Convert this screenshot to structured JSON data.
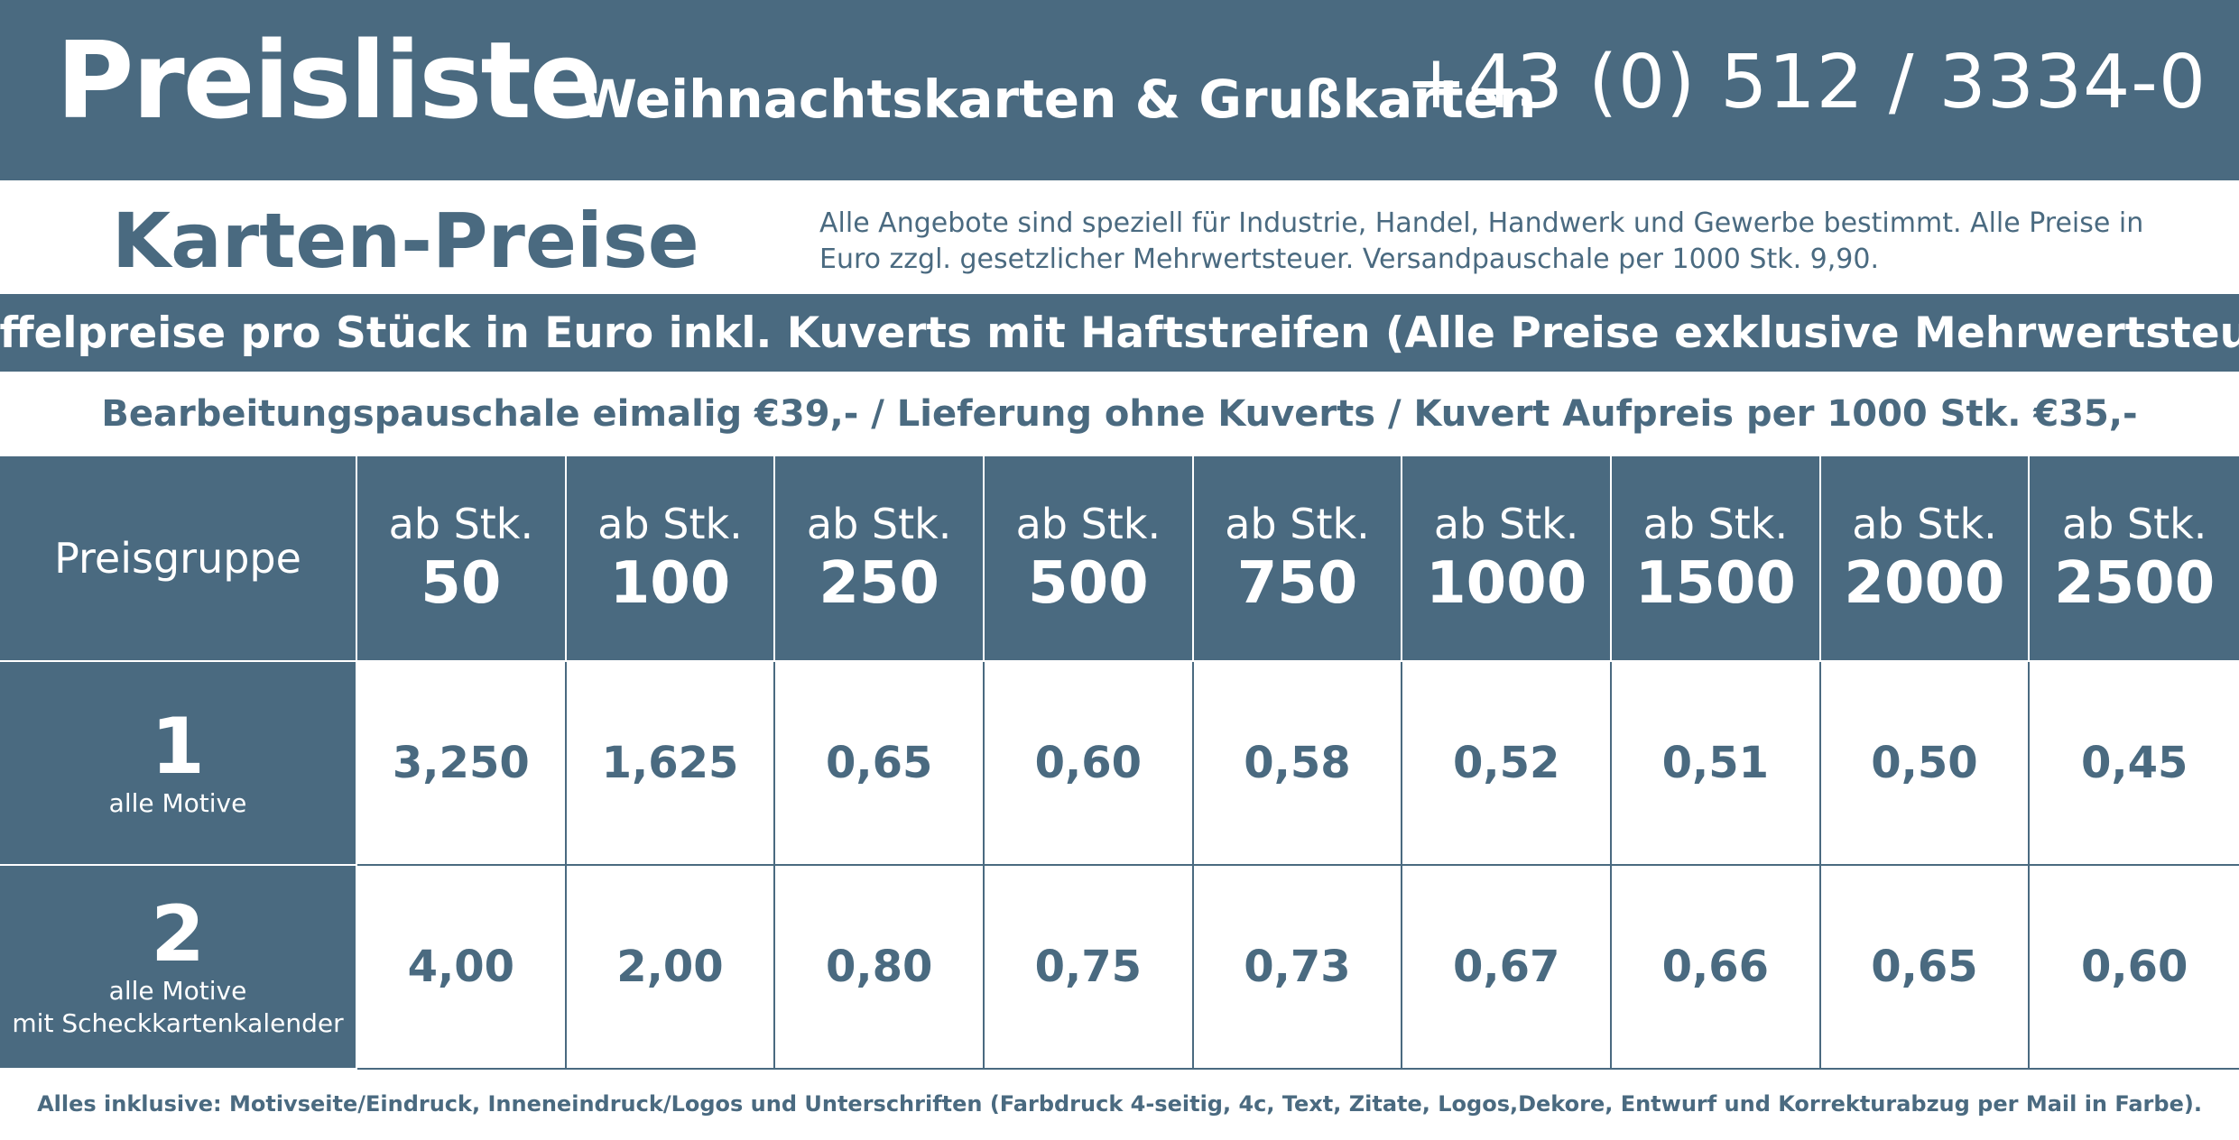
{
  "header": {
    "title": "Preisliste",
    "subtitle": "Weihnachtskarten & Grußkarten",
    "phone": "+43 (0) 512 / 3334-0"
  },
  "karten": {
    "title": "Karten-Preise",
    "note": "Alle Angebote sind speziell für Industrie, Handel, Handwerk und Gewerbe bestimmt. Alle Preise in Euro zzgl. gesetzlicher Mehrwertsteuer. Versandpauschale per 1000 Stk. 9,90."
  },
  "staffel": {
    "text": "Staffelpreise pro Stück in Euro inkl. Kuverts mit Haftstreifen (Alle Preise exklusive Mehrwertsteuer)"
  },
  "bearbeitung": {
    "text": "Bearbeitungspauschale eimalig €39,- / Lieferung ohne Kuverts / Kuvert Aufpreis per 1000 Stk. €35,-"
  },
  "table": {
    "group_header": "Preisgruppe",
    "qty_label": "ab Stk.",
    "quantities": [
      "50",
      "100",
      "250",
      "500",
      "750",
      "1000",
      "1500",
      "2000",
      "2500"
    ],
    "rows": [
      {
        "group": "1",
        "desc_line1": "alle Motive",
        "desc_line2": "",
        "prices": [
          "3,250",
          "1,625",
          "0,65",
          "0,60",
          "0,58",
          "0,52",
          "0,51",
          "0,50",
          "0,45"
        ]
      },
      {
        "group": "2",
        "desc_line1": "alle Motive",
        "desc_line2": "mit Scheckkartenkalender",
        "prices": [
          "4,00",
          "2,00",
          "0,80",
          "0,75",
          "0,73",
          "0,67",
          "0,66",
          "0,65",
          "0,60"
        ]
      }
    ]
  },
  "footer": {
    "text": "Alles inklusive: Motivseite/Eindruck, Inneneindruck/Logos und Unterschriften (Farbdruck 4-seitig, 4c, Text, Zitate, Logos,Dekore, Entwurf und Korrekturabzug per Mail in Farbe)."
  },
  "colors": {
    "brand": "#4a6a80",
    "background": "#ffffff"
  }
}
